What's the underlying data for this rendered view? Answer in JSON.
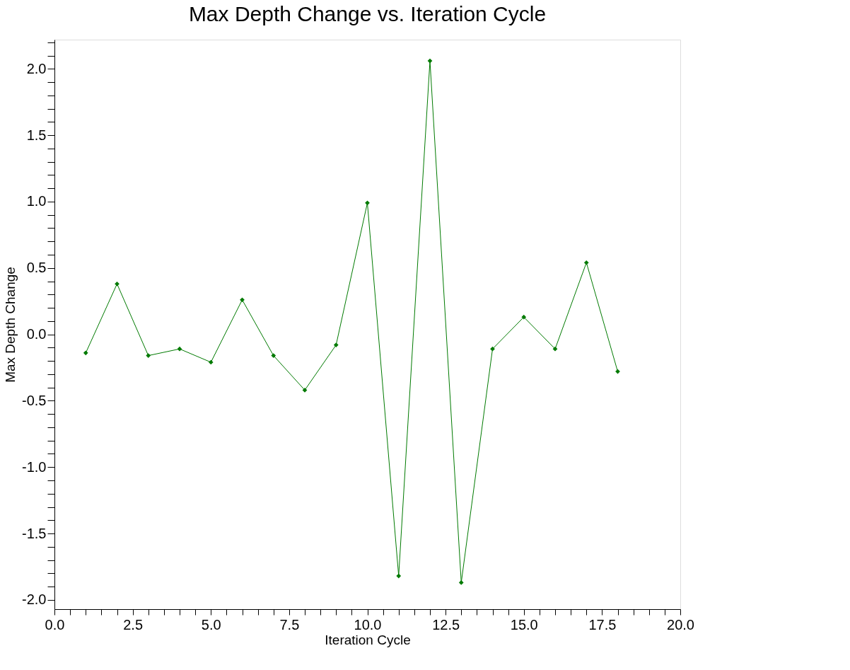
{
  "chart_data": {
    "type": "line",
    "title": "Max Depth Change vs. Iteration Cycle",
    "xlabel": "Iteration Cycle",
    "ylabel": "Max Depth Change",
    "x": [
      1,
      2,
      3,
      4,
      5,
      6,
      7,
      8,
      9,
      10,
      11,
      12,
      13,
      14,
      15,
      16,
      17,
      18
    ],
    "series": [
      {
        "color": "#007a00",
        "values": [
          -0.14,
          0.38,
          -0.16,
          -0.11,
          -0.21,
          0.26,
          -0.16,
          -0.42,
          -0.08,
          0.99,
          -1.82,
          2.06,
          -1.87,
          -0.11,
          0.13,
          -0.11,
          0.54,
          -0.28
        ]
      }
    ],
    "xlim": [
      0,
      20
    ],
    "ylim": [
      -2.07,
      2.22
    ],
    "xticks": [
      {
        "value": 0,
        "label": "0.0"
      },
      {
        "value": 0.5,
        "label": null
      },
      {
        "value": 1,
        "label": null
      },
      {
        "value": 1.5,
        "label": null
      },
      {
        "value": 2,
        "label": null
      },
      {
        "value": 2.5,
        "label": "2.5"
      },
      {
        "value": 3,
        "label": null
      },
      {
        "value": 3.5,
        "label": null
      },
      {
        "value": 4,
        "label": null
      },
      {
        "value": 4.5,
        "label": null
      },
      {
        "value": 5,
        "label": "5.0"
      },
      {
        "value": 5.5,
        "label": null
      },
      {
        "value": 6,
        "label": null
      },
      {
        "value": 6.5,
        "label": null
      },
      {
        "value": 7,
        "label": null
      },
      {
        "value": 7.5,
        "label": "7.5"
      },
      {
        "value": 8,
        "label": null
      },
      {
        "value": 8.5,
        "label": null
      },
      {
        "value": 9,
        "label": null
      },
      {
        "value": 9.5,
        "label": null
      },
      {
        "value": 10,
        "label": "10.0"
      },
      {
        "value": 10.5,
        "label": null
      },
      {
        "value": 11,
        "label": null
      },
      {
        "value": 11.5,
        "label": null
      },
      {
        "value": 12,
        "label": null
      },
      {
        "value": 12.5,
        "label": "12.5"
      },
      {
        "value": 13,
        "label": null
      },
      {
        "value": 13.5,
        "label": null
      },
      {
        "value": 14,
        "label": null
      },
      {
        "value": 14.5,
        "label": null
      },
      {
        "value": 15,
        "label": "15.0"
      },
      {
        "value": 15.5,
        "label": null
      },
      {
        "value": 16,
        "label": null
      },
      {
        "value": 16.5,
        "label": null
      },
      {
        "value": 17,
        "label": null
      },
      {
        "value": 17.5,
        "label": "17.5"
      },
      {
        "value": 18,
        "label": null
      },
      {
        "value": 18.5,
        "label": null
      },
      {
        "value": 19,
        "label": null
      },
      {
        "value": 19.5,
        "label": null
      },
      {
        "value": 20,
        "label": "20.0"
      }
    ],
    "yticks": [
      {
        "value": -2.0,
        "label": "-2.0"
      },
      {
        "value": -1.9,
        "label": null
      },
      {
        "value": -1.8,
        "label": null
      },
      {
        "value": -1.7,
        "label": null
      },
      {
        "value": -1.6,
        "label": null
      },
      {
        "value": -1.5,
        "label": "-1.5"
      },
      {
        "value": -1.4,
        "label": null
      },
      {
        "value": -1.3,
        "label": null
      },
      {
        "value": -1.2,
        "label": null
      },
      {
        "value": -1.1,
        "label": null
      },
      {
        "value": -1.0,
        "label": "-1.0"
      },
      {
        "value": -0.9,
        "label": null
      },
      {
        "value": -0.8,
        "label": null
      },
      {
        "value": -0.7,
        "label": null
      },
      {
        "value": -0.6,
        "label": null
      },
      {
        "value": -0.5,
        "label": "-0.5"
      },
      {
        "value": -0.4,
        "label": null
      },
      {
        "value": -0.3,
        "label": null
      },
      {
        "value": -0.2,
        "label": null
      },
      {
        "value": -0.1,
        "label": null
      },
      {
        "value": 0,
        "label": "0.0"
      },
      {
        "value": 0.1,
        "label": null
      },
      {
        "value": 0.2,
        "label": null
      },
      {
        "value": 0.3,
        "label": null
      },
      {
        "value": 0.4,
        "label": null
      },
      {
        "value": 0.5,
        "label": "0.5"
      },
      {
        "value": 0.6,
        "label": null
      },
      {
        "value": 0.7,
        "label": null
      },
      {
        "value": 0.8,
        "label": null
      },
      {
        "value": 0.9,
        "label": null
      },
      {
        "value": 1.0,
        "label": "1.0"
      },
      {
        "value": 1.1,
        "label": null
      },
      {
        "value": 1.2,
        "label": null
      },
      {
        "value": 1.3,
        "label": null
      },
      {
        "value": 1.4,
        "label": null
      },
      {
        "value": 1.5,
        "label": "1.5"
      },
      {
        "value": 1.6,
        "label": null
      },
      {
        "value": 1.7,
        "label": null
      },
      {
        "value": 1.8,
        "label": null
      },
      {
        "value": 1.9,
        "label": null
      },
      {
        "value": 2.0,
        "label": "2.0"
      },
      {
        "value": 2.1,
        "label": null
      },
      {
        "value": 2.2,
        "label": null
      }
    ],
    "grid": false,
    "marker": "diamond",
    "line_style": "solid"
  }
}
